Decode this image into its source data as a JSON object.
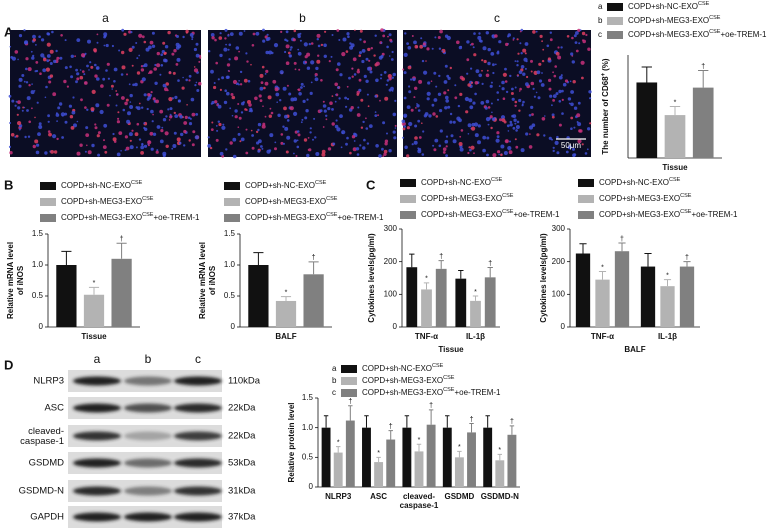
{
  "panels": [
    "A",
    "B",
    "C",
    "D"
  ],
  "images": {
    "labels": [
      "a",
      "b",
      "c"
    ],
    "scale_bar": "50μm"
  },
  "blot": {
    "lanes": [
      "a",
      "b",
      "c"
    ],
    "rows": [
      {
        "protein": "NLRP3",
        "size": "110kDa"
      },
      {
        "protein": "ASC",
        "size": "22kDa"
      },
      {
        "protein": "cleaved-\ncaspase-1",
        "size": "22kDa"
      },
      {
        "protein": "GSDMD",
        "size": "53kDa"
      },
      {
        "protein": "GSDMD-N",
        "size": "31kDa"
      },
      {
        "protein": "GAPDH",
        "size": "37kDa"
      }
    ]
  },
  "chart_data": [
    {
      "type": "bar",
      "ylabel": "The number of CD68",
      "ylabel_sup": "+",
      "ylabel_tail": "(%)",
      "categories": [
        "Tissue"
      ],
      "ylim": [
        0,
        30
      ],
      "series": [
        {
          "letter": "a",
          "name": "COPD+sh-NC-EXO",
          "name_sup": "CSE",
          "color": "#111111",
          "values": [
            22
          ],
          "errors": [
            4.5
          ]
        },
        {
          "letter": "b",
          "name": "COPD+sh-MEG3-EXO",
          "name_sup": "CSE",
          "color": "#b3b3b3",
          "values": [
            12.5
          ],
          "errors": [
            2.5
          ],
          "sig": [
            "*"
          ]
        },
        {
          "letter": "c",
          "name": "COPD+sh-MEG3-EXO",
          "name_sup": "CSE",
          "name_tail": "+oe-TREM-1",
          "color": "#808080",
          "values": [
            20.5
          ],
          "errors": [
            5
          ],
          "sig": [
            "†"
          ]
        }
      ]
    },
    {
      "type": "bar",
      "ylabel": [
        "Relative mRNA level",
        "of iNOS"
      ],
      "categories": [
        "Tissue"
      ],
      "ylim": [
        0,
        1.5
      ],
      "yticks": [
        0,
        0.5,
        {
          "value": 1,
          "label": "1.0"
        },
        1.5
      ],
      "series": [
        {
          "name": "COPD+sh-NC-EXO",
          "name_sup": "CSE",
          "color": "#111111",
          "values": [
            1.0
          ],
          "errors": [
            0.22
          ]
        },
        {
          "name": "COPD+sh-MEG3-EXO",
          "name_sup": "CSE",
          "color": "#b3b3b3",
          "values": [
            0.52
          ],
          "errors": [
            0.12
          ],
          "sig": [
            "*"
          ]
        },
        {
          "name": "COPD+sh-MEG3-EXO",
          "name_sup": "CSE",
          "name_tail": "+oe-TREM-1",
          "color": "#808080",
          "values": [
            1.1
          ],
          "errors": [
            0.25
          ],
          "sig": [
            "†"
          ]
        }
      ]
    },
    {
      "type": "bar",
      "ylabel": [
        "Relative mRNA level",
        "of iNOS"
      ],
      "categories": [
        "BALF"
      ],
      "ylim": [
        0,
        1.5
      ],
      "yticks": [
        0,
        0.5,
        {
          "value": 1,
          "label": "1.0"
        },
        1.5
      ],
      "series": [
        {
          "name": "COPD+sh-NC-EXO",
          "name_sup": "CSE",
          "color": "#111111",
          "values": [
            1.0
          ],
          "errors": [
            0.2
          ]
        },
        {
          "name": "COPD+sh-MEG3-EXO",
          "name_sup": "CSE",
          "color": "#b3b3b3",
          "values": [
            0.42
          ],
          "errors": [
            0.07
          ],
          "sig": [
            "*"
          ]
        },
        {
          "name": "COPD+sh-MEG3-EXO",
          "name_sup": "CSE",
          "name_tail": "+oe-TREM-1",
          "color": "#808080",
          "values": [
            0.85
          ],
          "errors": [
            0.2
          ],
          "sig": [
            "†"
          ]
        }
      ]
    },
    {
      "type": "bar",
      "ylabel": "Cytokines levels(pg/ml)",
      "xlabel": "Tissue",
      "categories": [
        "TNF-α",
        "IL-1β"
      ],
      "ylim": [
        0,
        300
      ],
      "yticks": [
        0,
        100,
        200,
        300
      ],
      "series": [
        {
          "name": "COPD+sh-NC-EXO",
          "name_sup": "CSE",
          "color": "#111111",
          "values": [
            183,
            148
          ],
          "errors": [
            40,
            25
          ]
        },
        {
          "name": "COPD+sh-MEG3-EXO",
          "name_sup": "CSE",
          "color": "#b3b3b3",
          "values": [
            115,
            80
          ],
          "errors": [
            20,
            15
          ],
          "sig": [
            "*",
            "*"
          ]
        },
        {
          "name": "COPD+sh-MEG3-EXO",
          "name_sup": "CSE",
          "name_tail": "+oe-TREM-1",
          "color": "#808080",
          "values": [
            178,
            152
          ],
          "errors": [
            25,
            30
          ],
          "sig": [
            "†",
            "†"
          ]
        }
      ]
    },
    {
      "type": "bar",
      "ylabel": "Cytokines levels(pg/ml)",
      "xlabel": "BALF",
      "categories": [
        "TNF-α",
        "IL-1β"
      ],
      "ylim": [
        0,
        300
      ],
      "yticks": [
        0,
        100,
        200,
        300
      ],
      "series": [
        {
          "name": "COPD+sh-NC-EXO",
          "name_sup": "CSE",
          "color": "#111111",
          "values": [
            225,
            185
          ],
          "errors": [
            30,
            40
          ]
        },
        {
          "name": "COPD+sh-MEG3-EXO",
          "name_sup": "CSE",
          "color": "#b3b3b3",
          "values": [
            145,
            125
          ],
          "errors": [
            25,
            20
          ],
          "sig": [
            "*",
            "*"
          ]
        },
        {
          "name": "COPD+sh-MEG3-EXO",
          "name_sup": "CSE",
          "name_tail": "+oe-TREM-1",
          "color": "#808080",
          "values": [
            232,
            185
          ],
          "errors": [
            25,
            15
          ],
          "sig": [
            "†",
            "†"
          ]
        }
      ]
    },
    {
      "type": "bar",
      "ylabel": "Relative protein level",
      "categories": [
        "NLRP3",
        "ASC",
        "cleaved-\ncaspase-1",
        "GSDMD",
        "GSDMD-N"
      ],
      "ylim": [
        0,
        1.5
      ],
      "yticks": [
        0,
        0.5,
        {
          "value": 1,
          "label": "1.0"
        },
        1.5
      ],
      "series": [
        {
          "letter": "a",
          "name": "COPD+sh-NC-EXO",
          "name_sup": "CSE",
          "color": "#111111",
          "values": [
            1,
            1,
            1,
            1,
            1
          ],
          "errors": [
            0.2,
            0.2,
            0.2,
            0.2,
            0.2
          ]
        },
        {
          "letter": "b",
          "name": "COPD+sh-MEG3-EXO",
          "name_sup": "CSE",
          "color": "#b3b3b3",
          "values": [
            0.58,
            0.42,
            0.6,
            0.5,
            0.45
          ],
          "errors": [
            0.1,
            0.08,
            0.12,
            0.1,
            0.1
          ],
          "sig": [
            "*",
            "*",
            "*",
            "*",
            "*"
          ]
        },
        {
          "letter": "c",
          "name": "COPD+sh-MEG3-EXO",
          "name_sup": "CSE",
          "name_tail": "+oe-TREM-1",
          "color": "#808080",
          "values": [
            1.12,
            0.8,
            1.05,
            0.92,
            0.88
          ],
          "errors": [
            0.25,
            0.15,
            0.25,
            0.15,
            0.15
          ],
          "sig": [
            "†",
            "†",
            "†",
            "†",
            "†"
          ]
        }
      ]
    }
  ]
}
